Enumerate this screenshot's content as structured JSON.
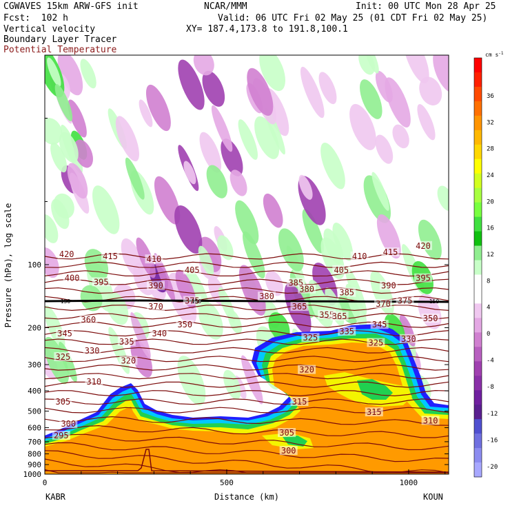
{
  "header": {
    "model": "CGWAVES 15km ARW-GFS init",
    "org": "NCAR/MMM",
    "init": "Init: 00 UTC Mon 28 Apr 25",
    "fcst": "Fcst:  102 h",
    "valid": "Valid: 06 UTC Fri 02 May 25 (01 CDT Fri 02 May 25)",
    "field1": "Vertical velocity",
    "field2": "Boundary Layer Tracer",
    "field3": "Potential Temperature",
    "xy": "XY= 187.4,173.8 to 191.8,100.1"
  },
  "colors": {
    "theta_contour": "#7b0a0a",
    "tropopause_line": "#000000",
    "tracer_fill": "#ff9a00"
  },
  "chart_data": {
    "type": "heatmap",
    "xlabel": "Distance (km)",
    "ylabel": "Pressure (hPa), log scale",
    "xlim": [
      0,
      1110
    ],
    "ylim": [
      1000,
      10
    ],
    "x_ticks": [
      0,
      500,
      1000
    ],
    "y_ticks": [
      100,
      200,
      300,
      400,
      500,
      600,
      700,
      800,
      900,
      1000
    ],
    "endpoint_left": "KABR",
    "endpoint_right": "KOUN",
    "colorbar": {
      "unit": "cm s",
      "unit_exp": "-1",
      "ticks": [
        36,
        32,
        28,
        24,
        20,
        16,
        12,
        8,
        4,
        0,
        -4,
        -8,
        -12,
        -16,
        -20
      ],
      "colors": [
        "#ff0000",
        "#ff2000",
        "#ff4a00",
        "#ff7000",
        "#ff9400",
        "#ffb800",
        "#ffd800",
        "#ffff00",
        "#d2ff20",
        "#a8ff40",
        "#78ff40",
        "#40e040",
        "#10c010",
        "#90ee90",
        "#c8ffc8",
        "#ffffff",
        "#ffffff",
        "#f0c8f0",
        "#e4a8e4",
        "#d080d0",
        "#b860c0",
        "#a040b0",
        "#8a30a8",
        "#7020a0",
        "#5a2090",
        "#5050d0",
        "#7070e0",
        "#8c8cf0",
        "#a8a8ff"
      ]
    },
    "theta_labels": [
      {
        "v": "420",
        "x": 60,
        "p": 90
      },
      {
        "v": "415",
        "x": 180,
        "p": 92
      },
      {
        "v": "410",
        "x": 300,
        "p": 95
      },
      {
        "v": "405",
        "x": 405,
        "p": 107
      },
      {
        "v": "400",
        "x": 75,
        "p": 117
      },
      {
        "v": "395",
        "x": 155,
        "p": 122
      },
      {
        "v": "390",
        "x": 305,
        "p": 127
      },
      {
        "v": "385",
        "x": 690,
        "p": 123
      },
      {
        "v": "380",
        "x": 720,
        "p": 132
      },
      {
        "v": "375",
        "x": 405,
        "p": 150
      },
      {
        "v": "370",
        "x": 305,
        "p": 160
      },
      {
        "v": "365",
        "x": 700,
        "p": 160
      },
      {
        "v": "360",
        "x": 120,
        "p": 185
      },
      {
        "v": "355",
        "x": 775,
        "p": 175
      },
      {
        "v": "350",
        "x": 385,
        "p": 195
      },
      {
        "v": "345",
        "x": 55,
        "p": 215
      },
      {
        "v": "340",
        "x": 315,
        "p": 215
      },
      {
        "v": "335",
        "x": 225,
        "p": 235
      },
      {
        "v": "330",
        "x": 130,
        "p": 260
      },
      {
        "v": "325",
        "x": 50,
        "p": 278
      },
      {
        "v": "320",
        "x": 230,
        "p": 290
      },
      {
        "v": "315",
        "x": 700,
        "p": 455
      },
      {
        "v": "310",
        "x": 135,
        "p": 365
      },
      {
        "v": "305",
        "x": 50,
        "p": 455
      },
      {
        "v": "300",
        "x": 65,
        "p": 580
      },
      {
        "v": "295",
        "x": 45,
        "p": 660
      },
      {
        "v": "405b",
        "x": 815,
        "p": 107
      },
      {
        "v": "410b",
        "x": 865,
        "p": 92
      },
      {
        "v": "415b",
        "x": 950,
        "p": 88
      },
      {
        "v": "420b",
        "x": 1040,
        "p": 82
      },
      {
        "v": "395b",
        "x": 1040,
        "p": 117
      },
      {
        "v": "390b",
        "x": 945,
        "p": 127
      },
      {
        "v": "385b",
        "x": 830,
        "p": 137
      },
      {
        "v": "380b",
        "x": 610,
        "p": 143
      },
      {
        "v": "375b",
        "x": 990,
        "p": 150
      },
      {
        "v": "370b",
        "x": 930,
        "p": 155
      },
      {
        "v": "365b",
        "x": 810,
        "p": 178
      },
      {
        "v": "350b",
        "x": 1060,
        "p": 182
      },
      {
        "v": "345b",
        "x": 920,
        "p": 195
      },
      {
        "v": "335b",
        "x": 830,
        "p": 210
      },
      {
        "v": "325b",
        "x": 730,
        "p": 225
      },
      {
        "v": "325c",
        "x": 910,
        "p": 238
      },
      {
        "v": "330b",
        "x": 1000,
        "p": 228
      },
      {
        "v": "320b",
        "x": 720,
        "p": 320
      },
      {
        "v": "315b",
        "x": 905,
        "p": 510
      },
      {
        "v": "310b",
        "x": 1060,
        "p": 560
      },
      {
        "v": "305b",
        "x": 665,
        "p": 640
      },
      {
        "v": "300b",
        "x": 670,
        "p": 780
      }
    ],
    "theta_values": [
      "420",
      "415",
      "410",
      "405",
      "400",
      "395",
      "390",
      "385",
      "380",
      "375",
      "370",
      "365",
      "360",
      "355",
      "350",
      "345",
      "340",
      "335",
      "330",
      "325",
      "320",
      "315",
      "310",
      "305",
      "300",
      "295"
    ],
    "tropopause_label": "150"
  }
}
